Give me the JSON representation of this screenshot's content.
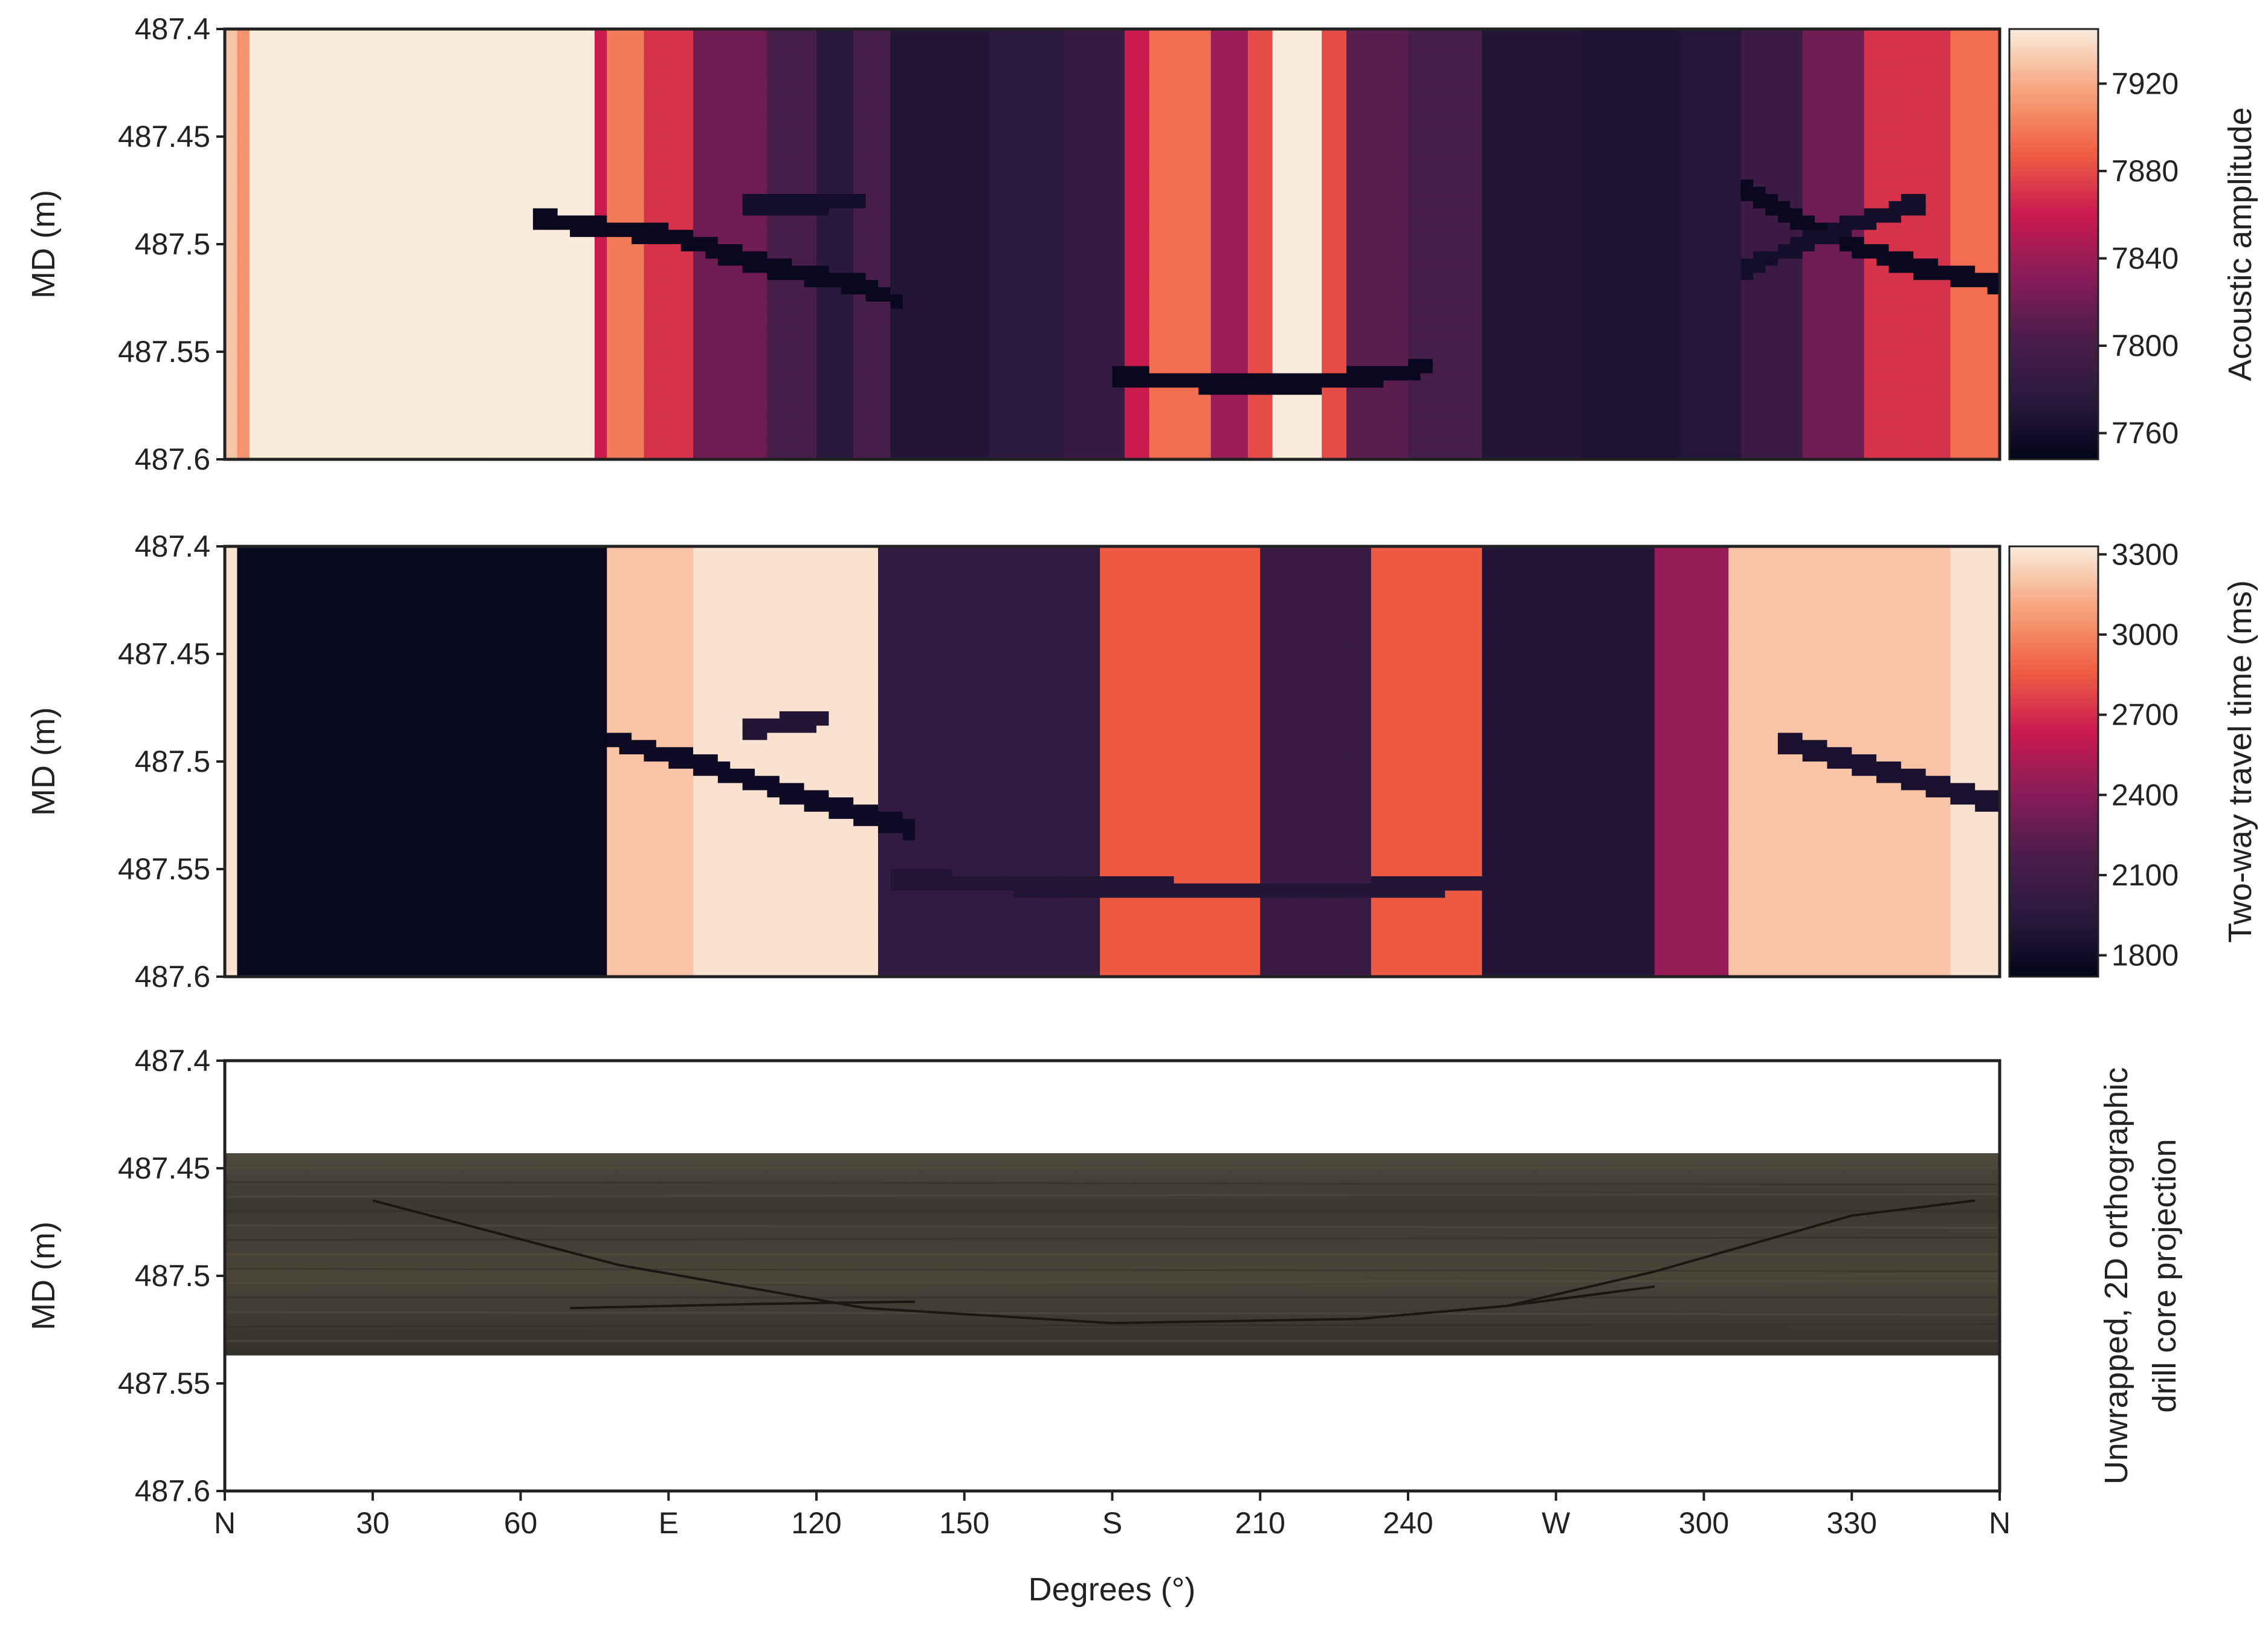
{
  "chart_data": [
    {
      "type": "heatmap",
      "panel": "acoustic",
      "ylabel": "MD (m)",
      "colorbar_label": "Acoustic amplitude",
      "colorbar_ticks": [
        "7760",
        "7800",
        "7840",
        "7880",
        "7920"
      ],
      "colorbar_range": [
        7748,
        7945
      ],
      "colormap": [
        "#03051a",
        "#2b1a3e",
        "#4c1d4b",
        "#8a1c59",
        "#cb1b4f",
        "#f06043",
        "#f6a47c",
        "#faebdd"
      ],
      "yticks": [
        "487.4",
        "487.45",
        "487.5",
        "487.55",
        "487.6"
      ],
      "ylim": [
        487.6,
        487.4
      ],
      "x_range_deg": [
        0,
        360
      ],
      "column_profile": [
        {
          "from": 0,
          "to": 3,
          "value": 7930
        },
        {
          "from": 3,
          "to": 6,
          "value": 7910
        },
        {
          "from": 6,
          "to": 75,
          "value": 7945
        },
        {
          "from": 75,
          "to": 78,
          "value": 7860
        },
        {
          "from": 78,
          "to": 84,
          "value": 7900
        },
        {
          "from": 84,
          "to": 96,
          "value": 7870
        },
        {
          "from": 96,
          "to": 110,
          "value": 7820
        },
        {
          "from": 110,
          "to": 120,
          "value": 7800
        },
        {
          "from": 120,
          "to": 127,
          "value": 7775
        },
        {
          "from": 127,
          "to": 134,
          "value": 7800
        },
        {
          "from": 134,
          "to": 155,
          "value": 7770
        },
        {
          "from": 155,
          "to": 170,
          "value": 7778
        },
        {
          "from": 170,
          "to": 182,
          "value": 7785
        },
        {
          "from": 182,
          "to": 188,
          "value": 7860
        },
        {
          "from": 188,
          "to": 200,
          "value": 7895
        },
        {
          "from": 200,
          "to": 208,
          "value": 7840
        },
        {
          "from": 208,
          "to": 212,
          "value": 7880
        },
        {
          "from": 212,
          "to": 222,
          "value": 7945
        },
        {
          "from": 222,
          "to": 228,
          "value": 7880
        },
        {
          "from": 228,
          "to": 240,
          "value": 7810
        },
        {
          "from": 240,
          "to": 255,
          "value": 7800
        },
        {
          "from": 255,
          "to": 275,
          "value": 7770
        },
        {
          "from": 275,
          "to": 295,
          "value": 7768
        },
        {
          "from": 295,
          "to": 308,
          "value": 7772
        },
        {
          "from": 308,
          "to": 320,
          "value": 7790
        },
        {
          "from": 320,
          "to": 332,
          "value": 7820
        },
        {
          "from": 332,
          "to": 350,
          "value": 7870
        },
        {
          "from": 350,
          "to": 360,
          "value": 7895
        }
      ],
      "features": [
        {
          "kind": "fracture",
          "deg": [
            62,
            75,
            90,
            110,
            130,
            138
          ],
          "md": [
            487.488,
            487.492,
            487.496,
            487.51,
            487.52,
            487.528
          ],
          "value": 7752
        },
        {
          "kind": "fracture",
          "deg": [
            105,
            130
          ],
          "md": [
            487.482,
            487.48
          ],
          "value": 7760
        },
        {
          "kind": "fracture",
          "deg": [
            180,
            200,
            215,
            238,
            245
          ],
          "md": [
            487.562,
            487.564,
            487.566,
            487.56,
            487.556
          ],
          "value": 7752
        },
        {
          "kind": "fracture",
          "deg": [
            308,
            320,
            335,
            345,
            360
          ],
          "md": [
            487.475,
            487.49,
            487.505,
            487.512,
            487.518
          ],
          "value": 7752
        },
        {
          "kind": "fracture",
          "deg": [
            308,
            325,
            345
          ],
          "md": [
            487.512,
            487.495,
            487.48
          ],
          "value": 7760
        }
      ]
    },
    {
      "type": "heatmap",
      "panel": "travel-time",
      "ylabel": "MD (m)",
      "colorbar_label": "Two-way travel time (ms)",
      "colorbar_ticks": [
        "1800",
        "2100",
        "2400",
        "2700",
        "3000",
        "3300"
      ],
      "colorbar_range": [
        1720,
        3330
      ],
      "colormap": [
        "#03051a",
        "#2b1a3e",
        "#4c1d4b",
        "#8a1c59",
        "#cb1b4f",
        "#f06043",
        "#f6a47c",
        "#faebdd"
      ],
      "yticks": [
        "487.4",
        "487.45",
        "487.5",
        "487.55",
        "487.6"
      ],
      "ylim": [
        487.6,
        487.4
      ],
      "x_range_deg": [
        0,
        360
      ],
      "column_profile": [
        {
          "from": 0,
          "to": 2,
          "value": 3300
        },
        {
          "from": 2,
          "to": 78,
          "value": 1750
        },
        {
          "from": 78,
          "to": 96,
          "value": 3200
        },
        {
          "from": 96,
          "to": 132,
          "value": 3300
        },
        {
          "from": 132,
          "to": 178,
          "value": 2000
        },
        {
          "from": 178,
          "to": 210,
          "value": 2850
        },
        {
          "from": 210,
          "to": 232,
          "value": 2050
        },
        {
          "from": 232,
          "to": 256,
          "value": 2850
        },
        {
          "from": 256,
          "to": 290,
          "value": 1900
        },
        {
          "from": 290,
          "to": 306,
          "value": 2450
        },
        {
          "from": 306,
          "to": 350,
          "value": 3200
        },
        {
          "from": 350,
          "to": 360,
          "value": 3300
        }
      ],
      "features": [
        {
          "kind": "fracture",
          "deg": [
            78,
            95,
            115,
            130,
            140
          ],
          "md": [
            487.49,
            487.5,
            487.515,
            487.525,
            487.532
          ],
          "value": 1790
        },
        {
          "kind": "fracture",
          "deg": [
            105,
            122
          ],
          "md": [
            487.485,
            487.48
          ],
          "value": 1900
        },
        {
          "kind": "fracture",
          "deg": [
            135,
            170,
            200,
            230,
            256
          ],
          "md": [
            487.555,
            487.558,
            487.56,
            487.56,
            487.556
          ],
          "value": 1900
        },
        {
          "kind": "fracture",
          "deg": [
            315,
            330,
            345,
            360
          ],
          "md": [
            487.49,
            487.5,
            487.51,
            487.52
          ],
          "value": 1850
        }
      ]
    },
    {
      "type": "image",
      "panel": "core",
      "ylabel": "MD (m)",
      "side_label_lines": [
        "Unwrapped, 2D orthographic",
        "drill core projection"
      ],
      "yticks": [
        "487.4",
        "487.45",
        "487.5",
        "487.55",
        "487.6"
      ],
      "ylim": [
        487.6,
        487.4
      ],
      "core_md_range": [
        487.443,
        487.537
      ],
      "core_colors": [
        "#4f4a3e",
        "#3c392f",
        "#4a4539",
        "#35322a"
      ],
      "xlabel": "Degrees (°)",
      "xticks": [
        "N",
        "30",
        "60",
        "E",
        "120",
        "150",
        "S",
        "210",
        "240",
        "W",
        "300",
        "330",
        "N"
      ]
    }
  ]
}
